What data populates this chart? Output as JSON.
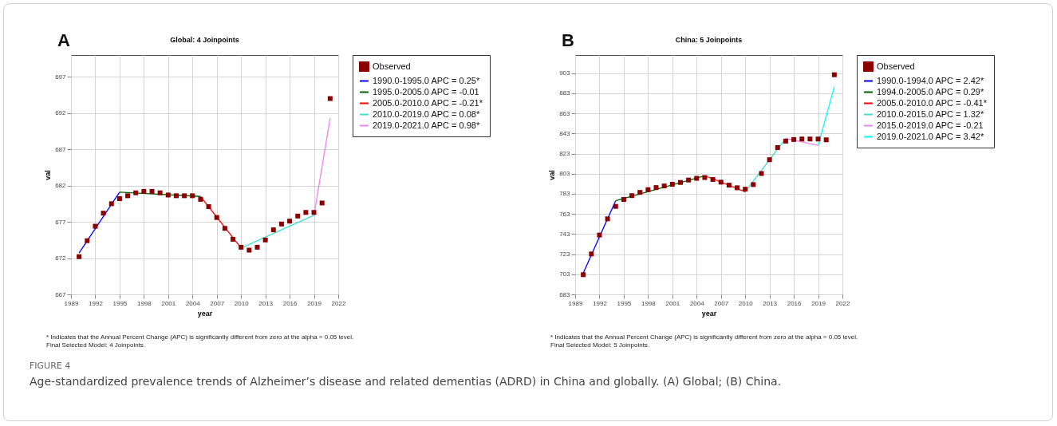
{
  "chart_data": [
    {
      "type": "line",
      "title": "Global: 4 Joinpoints",
      "xlabel": "year",
      "ylabel": "val",
      "xlim": [
        1989,
        2022
      ],
      "xticks": [
        1989,
        1992,
        1995,
        1998,
        2001,
        2004,
        2007,
        2010,
        2013,
        2016,
        2019,
        2022
      ],
      "ylim": [
        667,
        700
      ],
      "yticks": [
        667,
        672,
        677,
        682,
        687,
        692,
        697
      ],
      "grid": true,
      "legend": "right",
      "series": [
        {
          "name": "Observed",
          "type": "scatter",
          "marker": "square",
          "color": "#8b0000",
          "x": [
            1990,
            1991,
            1992,
            1993,
            1994,
            1995,
            1996,
            1997,
            1998,
            1999,
            2000,
            2001,
            2002,
            2003,
            2004,
            2005,
            2006,
            2007,
            2008,
            2009,
            2010,
            2011,
            2012,
            2013,
            2014,
            2015,
            2016,
            2017,
            2018,
            2019,
            2020,
            2021
          ],
          "values": [
            672.2,
            674.4,
            676.4,
            678.2,
            679.5,
            680.2,
            680.6,
            681.0,
            681.2,
            681.2,
            681.0,
            680.7,
            680.6,
            680.6,
            680.6,
            680.1,
            679.1,
            677.6,
            676.1,
            674.6,
            673.5,
            673.1,
            673.5,
            674.5,
            675.9,
            676.7,
            677.1,
            677.8,
            678.3,
            678.3,
            679.6,
            694.0
          ]
        },
        {
          "name": "1990.0-1995.0 APC = 0.25*",
          "type": "line",
          "color": "#0000ff",
          "x": [
            1990,
            1995
          ],
          "values": [
            672.7,
            681.1
          ]
        },
        {
          "name": "1995.0-2005.0 APC = -0.01",
          "type": "line",
          "color": "#006400",
          "x": [
            1995,
            2005
          ],
          "values": [
            681.1,
            680.5
          ]
        },
        {
          "name": "2005.0-2010.0 APC = -0.21*",
          "type": "line",
          "color": "#ff0000",
          "x": [
            2005,
            2010
          ],
          "values": [
            680.5,
            673.4
          ]
        },
        {
          "name": "2010.0-2019.0 APC = 0.08*",
          "type": "line",
          "color": "#40e0d0",
          "x": [
            2010,
            2019
          ],
          "values": [
            673.4,
            677.9
          ]
        },
        {
          "name": "2019.0-2021.0 APC = 0.98*",
          "type": "line",
          "color": "#ee82ee",
          "x": [
            2019,
            2021
          ],
          "values": [
            677.9,
            691.3
          ]
        }
      ],
      "annotations": [
        "A",
        "* Indicates that the Annual Percent Change (APC) is significantly different from zero at the alpha = 0.05 level.",
        "Final Selected Model: 4 Joinpoints.",
        "FIGURE 4",
        "Age-standardized prevalence trends of Alzheimer’s disease and related dementias (ADRD) in China and globally. (A) Global; (B) China."
      ]
    },
    {
      "type": "line",
      "title": "China: 5 Joinpoints",
      "xlabel": "year",
      "ylabel": "val",
      "xlim": [
        1989,
        2022
      ],
      "xticks": [
        1989,
        1992,
        1995,
        1998,
        2001,
        2004,
        2007,
        2010,
        2013,
        2016,
        2019,
        2022
      ],
      "ylim": [
        683,
        921
      ],
      "yticks": [
        683,
        703,
        723,
        743,
        763,
        783,
        803,
        823,
        843,
        863,
        883,
        903
      ],
      "grid": true,
      "legend": "right",
      "series": [
        {
          "name": "Observed",
          "type": "scatter",
          "marker": "square",
          "color": "#8b0000",
          "x": [
            1990,
            1991,
            1992,
            1993,
            1994,
            1995,
            1996,
            1997,
            1998,
            1999,
            2000,
            2001,
            2002,
            2003,
            2004,
            2005,
            2006,
            2007,
            2008,
            2009,
            2010,
            2011,
            2012,
            2013,
            2014,
            2015,
            2016,
            2017,
            2018,
            2019,
            2020,
            2021
          ],
          "values": [
            702.6,
            723.2,
            742.0,
            758.1,
            770.5,
            777.4,
            781.2,
            784.4,
            787.1,
            789.2,
            790.8,
            792.5,
            794.3,
            796.7,
            798.4,
            799.2,
            797.3,
            794.6,
            791.6,
            789.0,
            787.6,
            792.2,
            803.2,
            816.9,
            829.0,
            835.4,
            837.0,
            837.5,
            837.5,
            837.5,
            836.7,
            901.4
          ]
        },
        {
          "name": "1990.0-1994.0 APC = 2.42*",
          "type": "line",
          "color": "#0000ff",
          "x": [
            1990,
            1994
          ],
          "values": [
            704.2,
            776.1
          ]
        },
        {
          "name": "1994.0-2005.0 APC = 0.29*",
          "type": "line",
          "color": "#006400",
          "x": [
            1994,
            2005
          ],
          "values": [
            776.1,
            801.0
          ]
        },
        {
          "name": "2005.0-2010.0 APC = -0.41*",
          "type": "line",
          "color": "#ff0000",
          "x": [
            2005,
            2010
          ],
          "values": [
            801.0,
            785.0
          ]
        },
        {
          "name": "2010.0-2015.0 APC = 1.32*",
          "type": "line",
          "color": "#40e0d0",
          "x": [
            2010,
            2015
          ],
          "values": [
            785.0,
            838.1
          ]
        },
        {
          "name": "2015.0-2019.0 APC = -0.21",
          "type": "line",
          "color": "#ee82ee",
          "x": [
            2015,
            2019
          ],
          "values": [
            838.1,
            831.1
          ]
        },
        {
          "name": "2019.0-2021.0 APC = 3.42*",
          "type": "line",
          "color": "#00ffff",
          "x": [
            2019,
            2021
          ],
          "values": [
            831.1,
            889.6
          ]
        }
      ],
      "annotations": [
        "B",
        "* Indicates that the Annual Percent Change (APC) is significantly different from zero at the alpha = 0.05 level.",
        "Final Selected Model: 5 Joinpoints."
      ]
    }
  ]
}
